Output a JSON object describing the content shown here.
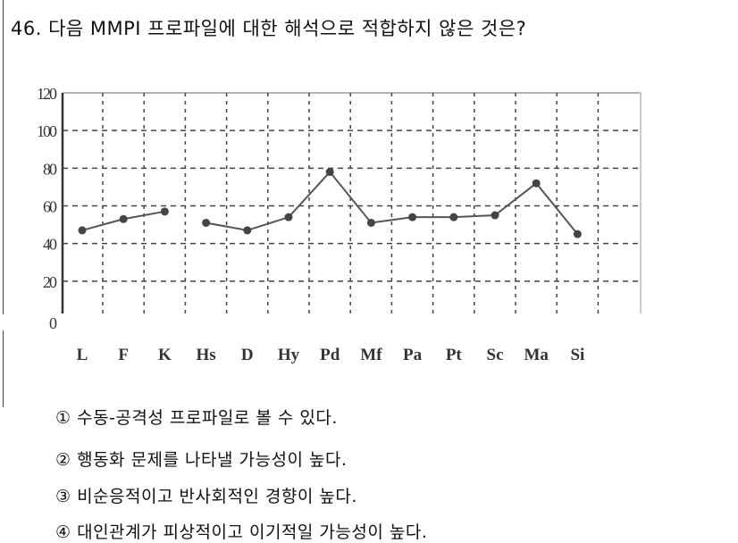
{
  "question": {
    "number": "46.",
    "text": "다음 MMPI 프로파일에 대한 해석으로 적합하지 않은 것은?"
  },
  "chart_data": {
    "type": "line",
    "title": "",
    "xlabel": "",
    "ylabel": "",
    "ylim": [
      0,
      120
    ],
    "yticks": [
      "0",
      "20",
      "40",
      "60",
      "80",
      "100",
      "120"
    ],
    "grid": true,
    "grid_style": "dashed",
    "categories": [
      "L",
      "F",
      "K",
      "Hs",
      "D",
      "Hy",
      "Pd",
      "Mf",
      "Pa",
      "Pt",
      "Sc",
      "Ma",
      "Si"
    ],
    "segments": [
      {
        "categories": [
          "L",
          "F",
          "K"
        ],
        "values": [
          47,
          53,
          57
        ]
      },
      {
        "categories": [
          "Hs",
          "D",
          "Hy",
          "Pd",
          "Mf",
          "Pa",
          "Pt",
          "Sc",
          "Ma",
          "Si"
        ],
        "values": [
          51,
          47,
          54,
          78,
          51,
          54,
          54,
          55,
          72,
          45
        ]
      }
    ],
    "line_color": "#555555"
  },
  "options": [
    {
      "marker": "①",
      "text": "수동-공격성 프로파일로 볼 수 있다."
    },
    {
      "marker": "②",
      "text": "행동화 문제를 나타낼 가능성이 높다."
    },
    {
      "marker": "③",
      "text": "비순응적이고 반사회적인 경향이 높다."
    },
    {
      "marker": "④",
      "text": "대인관계가 피상적이고 이기적일 가능성이 높다."
    }
  ]
}
